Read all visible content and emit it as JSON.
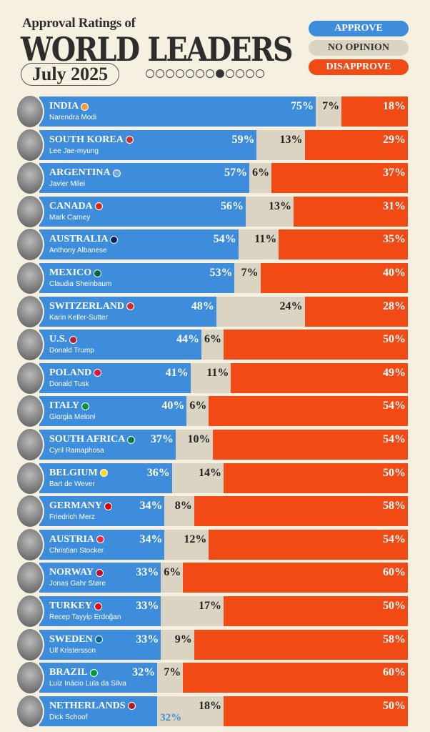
{
  "header": {
    "subtitle": "Approval Ratings of",
    "title": "WORLD LEADERS",
    "date": "July 2025",
    "page_dots": 12,
    "active_dot": 7
  },
  "colors": {
    "approve": "#3d8ddc",
    "no_opinion": "#dcd4c2",
    "disapprove": "#f14a14",
    "background": "#f6f0e0"
  },
  "chart_data": {
    "type": "bar",
    "stacked": true,
    "orientation": "horizontal",
    "title": "Approval Ratings of WORLD LEADERS",
    "subtitle": "July 2025",
    "legend": {
      "placement": "top-right",
      "entries": [
        "APPROVE",
        "NO OPINION",
        "DISAPPROVE"
      ]
    },
    "rows": [
      {
        "country": "INDIA",
        "leader": "Narendra Modi",
        "flag": "#ff9933",
        "approve": 75,
        "no_opinion": 7,
        "disapprove": 18
      },
      {
        "country": "SOUTH KOREA",
        "leader": "Lee Jae-myung",
        "flag": "#cd2e3a",
        "approve": 59,
        "no_opinion": 13,
        "disapprove": 29
      },
      {
        "country": "ARGENTINA",
        "leader": "Javier Milei",
        "flag": "#74acdf",
        "approve": 57,
        "no_opinion": 6,
        "disapprove": 37
      },
      {
        "country": "CANADA",
        "leader": "Mark Carney",
        "flag": "#d52b1e",
        "approve": 56,
        "no_opinion": 13,
        "disapprove": 31
      },
      {
        "country": "AUSTRALIA",
        "leader": "Anthony Albanese",
        "flag": "#012169",
        "approve": 54,
        "no_opinion": 11,
        "disapprove": 35
      },
      {
        "country": "MEXICO",
        "leader": "Claudia Sheinbaum",
        "flag": "#006847",
        "approve": 53,
        "no_opinion": 7,
        "disapprove": 40
      },
      {
        "country": "SWITZERLAND",
        "leader": "Karin Keller-Sutter",
        "flag": "#d52b1e",
        "approve": 48,
        "no_opinion": 24,
        "disapprove": 28
      },
      {
        "country": "U.S.",
        "leader": "Donald Trump",
        "flag": "#b22234",
        "approve": 44,
        "no_opinion": 6,
        "disapprove": 50
      },
      {
        "country": "POLAND",
        "leader": "Donald Tusk",
        "flag": "#dc143c",
        "approve": 41,
        "no_opinion": 11,
        "disapprove": 49
      },
      {
        "country": "ITALY",
        "leader": "Giorgia Meloni",
        "flag": "#009246",
        "approve": 40,
        "no_opinion": 6,
        "disapprove": 54
      },
      {
        "country": "SOUTH AFRICA",
        "leader": "Cyril Ramaphosa",
        "flag": "#007a4d",
        "approve": 37,
        "no_opinion": 10,
        "disapprove": 54
      },
      {
        "country": "BELGIUM",
        "leader": "Bart de Wever",
        "flag": "#fdda24",
        "approve": 36,
        "no_opinion": 14,
        "disapprove": 50
      },
      {
        "country": "GERMANY",
        "leader": "Friedrich Merz",
        "flag": "#dd0000",
        "approve": 34,
        "no_opinion": 8,
        "disapprove": 58
      },
      {
        "country": "AUSTRIA",
        "leader": "Christian Stocker",
        "flag": "#ed2939",
        "approve": 34,
        "no_opinion": 12,
        "disapprove": 54
      },
      {
        "country": "NORWAY",
        "leader": "Jonas Gahr Støre",
        "flag": "#ba0c2f",
        "approve": 33,
        "no_opinion": 6,
        "disapprove": 60
      },
      {
        "country": "TURKEY",
        "leader": "Recep Tayyip Erdoğan",
        "flag": "#e30a17",
        "approve": 33,
        "no_opinion": 17,
        "disapprove": 50
      },
      {
        "country": "SWEDEN",
        "leader": "Ulf Kristersson",
        "flag": "#006aa7",
        "approve": 33,
        "no_opinion": 9,
        "disapprove": 58
      },
      {
        "country": "BRAZIL",
        "leader": "Luiz Inácio Lula da Silva",
        "flag": "#009c3b",
        "approve": 32,
        "no_opinion": 7,
        "disapprove": 60
      },
      {
        "country": "NETHERLANDS",
        "leader": "Dick Schoof",
        "flag": "#ae1c28",
        "approve": 32,
        "no_opinion": 18,
        "disapprove": 50,
        "approve_label_outside": true
      }
    ]
  }
}
